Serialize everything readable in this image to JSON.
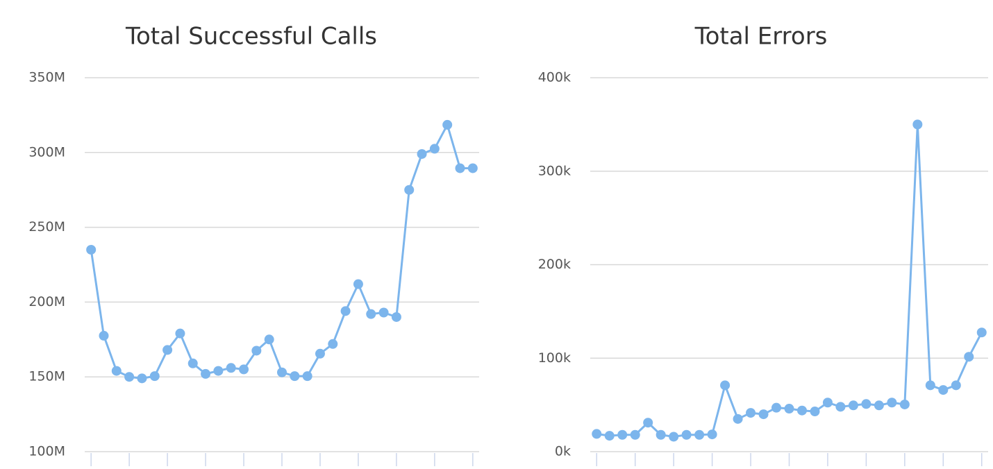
{
  "chart_data": [
    {
      "type": "line",
      "title": "Total Successful Calls",
      "categories": [
        null,
        null,
        null,
        null,
        null,
        null,
        null,
        null,
        null,
        null,
        null,
        null,
        null,
        null,
        null,
        null,
        null,
        null,
        null,
        null,
        null,
        null,
        null,
        null,
        null,
        null,
        null,
        null,
        null,
        null,
        null
      ],
      "series": [
        {
          "name": "Total Successful Calls",
          "color": "#7cb5ec",
          "values": [
            235000000,
            177500000,
            154000000,
            150000000,
            149000000,
            150500000,
            168000000,
            179000000,
            159000000,
            152000000,
            154000000,
            156000000,
            155000000,
            167500000,
            175000000,
            153000000,
            150500000,
            150500000,
            165500000,
            172000000,
            194000000,
            212000000,
            192000000,
            193000000,
            190000000,
            275000000,
            299000000,
            302500000,
            318500000,
            289500000,
            289500000
          ]
        }
      ],
      "ylim": [
        100000000,
        350000000
      ],
      "yticks": [
        {
          "value": 100000000,
          "label": "100M"
        },
        {
          "value": 150000000,
          "label": "150M"
        },
        {
          "value": 200000000,
          "label": "200M"
        },
        {
          "value": 250000000,
          "label": "250M"
        },
        {
          "value": 300000000,
          "label": "300M"
        },
        {
          "value": 350000000,
          "label": "350M"
        }
      ],
      "grid": true
    },
    {
      "type": "line",
      "title": "Total Errors",
      "categories": [
        null,
        null,
        null,
        null,
        null,
        null,
        null,
        null,
        null,
        null,
        null,
        null,
        null,
        null,
        null,
        null,
        null,
        null,
        null,
        null,
        null,
        null,
        null,
        null,
        null,
        null,
        null,
        null,
        null,
        null,
        null
      ],
      "series": [
        {
          "name": "Total Errors",
          "color": "#7cb5ec",
          "values": [
            19000,
            17000,
            18000,
            18000,
            31000,
            18000,
            16000,
            18000,
            18000,
            18500,
            71000,
            35000,
            41500,
            40000,
            47000,
            46000,
            44000,
            43000,
            52500,
            48000,
            49500,
            51000,
            49500,
            52500,
            50500,
            350000,
            71000,
            66000,
            71000,
            101500,
            127500
          ]
        }
      ],
      "ylim": [
        0,
        400000
      ],
      "yticks": [
        {
          "value": 0,
          "label": "0k"
        },
        {
          "value": 100000,
          "label": "100k"
        },
        {
          "value": 200000,
          "label": "200k"
        },
        {
          "value": 300000,
          "label": "300k"
        },
        {
          "value": 400000,
          "label": "400k"
        }
      ],
      "grid": true
    }
  ]
}
